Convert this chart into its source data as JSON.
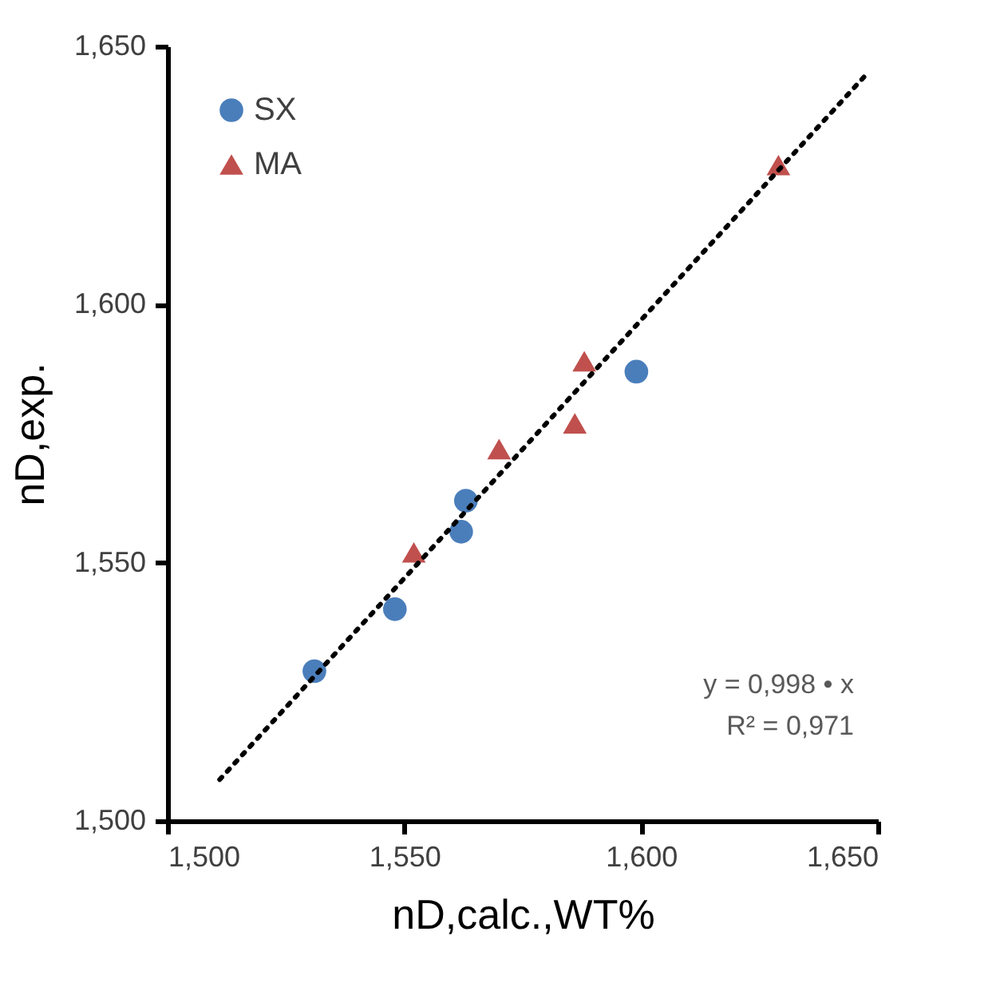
{
  "chart_data": {
    "type": "scatter",
    "xlabel": "nD,calc.,WT%",
    "ylabel": "nD,exp.",
    "xlim": [
      1.5,
      1.65
    ],
    "ylim": [
      1.5,
      1.65
    ],
    "xticks": [
      {
        "value": 1.5,
        "label": "1,500"
      },
      {
        "value": 1.55,
        "label": "1,550"
      },
      {
        "value": 1.6,
        "label": "1,600"
      },
      {
        "value": 1.65,
        "label": "1,650"
      }
    ],
    "yticks": [
      {
        "value": 1.5,
        "label": "1,500"
      },
      {
        "value": 1.55,
        "label": "1,550"
      },
      {
        "value": 1.6,
        "label": "1,600"
      },
      {
        "value": 1.65,
        "label": "1,650"
      }
    ],
    "series": [
      {
        "name": "SX",
        "color": "#4a7ebb",
        "marker": "circle",
        "x": [
          1.531,
          1.548,
          1.562,
          1.563,
          1.599
        ],
        "values": [
          1.529,
          1.541,
          1.556,
          1.562,
          1.587
        ]
      },
      {
        "name": "MA",
        "color": "#c0504d",
        "marker": "triangle",
        "x": [
          1.552,
          1.57,
          1.586,
          1.588,
          1.629
        ],
        "values": [
          1.552,
          1.572,
          1.577,
          1.589,
          1.627
        ]
      },
      {
        "type": "line",
        "color": "#000000",
        "line_style": "dotted",
        "x": [
          1.511,
          1.648
        ],
        "values": [
          1.508,
          1.645
        ]
      }
    ],
    "annotations": [
      "y = 0,998 • x",
      "R² = 0,971"
    ],
    "legend": "top left",
    "grid": false
  }
}
